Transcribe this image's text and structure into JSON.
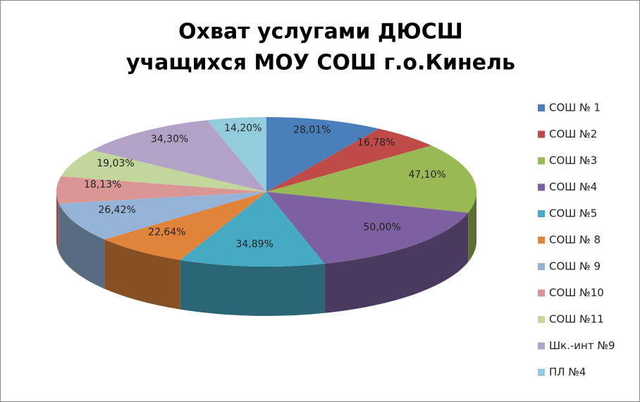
{
  "chart_data": {
    "type": "pie3d",
    "title": [
      "Охват услугами ДЮСШ",
      "учащихся  МОУ СОШ г.о.Кинель"
    ],
    "categories": [
      "СОШ № 1",
      "СОШ №2",
      "СОШ №3",
      "СОШ №4",
      "СОШ №5",
      "СОШ № 8",
      "СОШ № 9",
      "СОШ №10",
      "СОШ №11",
      "Шк.-инт №9",
      "ПЛ №4"
    ],
    "values": [
      28.01,
      16.78,
      47.1,
      50.0,
      34.89,
      22.64,
      26.42,
      18.13,
      19.03,
      34.3,
      14.2
    ],
    "value_labels": [
      "28,01%",
      "16,78%",
      "47,10%",
      "50,00%",
      "34,89%",
      "22,64%",
      "26,42%",
      "18,13%",
      "19,03%",
      "34,30%",
      "14,20%"
    ],
    "colors": [
      "#4a7ebb",
      "#be4b48",
      "#98b954",
      "#7d60a0",
      "#46aac5",
      "#e0843c",
      "#95b3d7",
      "#d99694",
      "#c3d69b",
      "#b2a2c7",
      "#93cddd"
    ],
    "legend": "right"
  }
}
